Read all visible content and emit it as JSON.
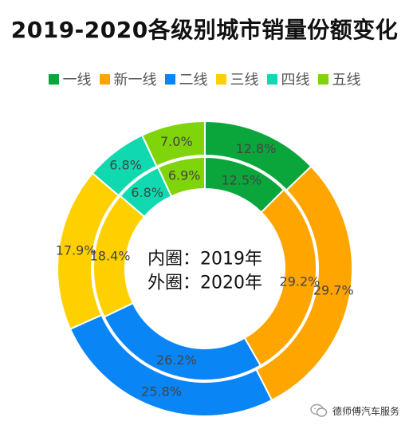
{
  "chart_data": {
    "type": "pie",
    "variant": "nested-donut",
    "title": "2019-2020各级别城市销量份额变化",
    "categories": [
      "一线",
      "新一线",
      "二线",
      "三线",
      "四线",
      "五线"
    ],
    "colors": [
      "#0aa63c",
      "#ffa500",
      "#0a85f5",
      "#ffd000",
      "#10d9b0",
      "#80d40a"
    ],
    "series": [
      {
        "name": "2019",
        "ring": "inner",
        "values": [
          12.5,
          29.2,
          26.2,
          18.4,
          6.8,
          6.9
        ],
        "labels": [
          "12.5%",
          "29.2%",
          "26.2%",
          "18.4%",
          "6.8%",
          "6.9%"
        ]
      },
      {
        "name": "2020",
        "ring": "outer",
        "values": [
          12.8,
          29.7,
          25.8,
          17.9,
          6.8,
          7.0
        ],
        "labels": [
          "12.8%",
          "29.7%",
          "25.8%",
          "17.9%",
          "6.8%",
          "7.0%"
        ]
      }
    ],
    "center_text": [
      "内圈：2019年",
      "外圈：2020年"
    ],
    "legend_position": "top"
  },
  "watermark": "德师傅汽车服务"
}
